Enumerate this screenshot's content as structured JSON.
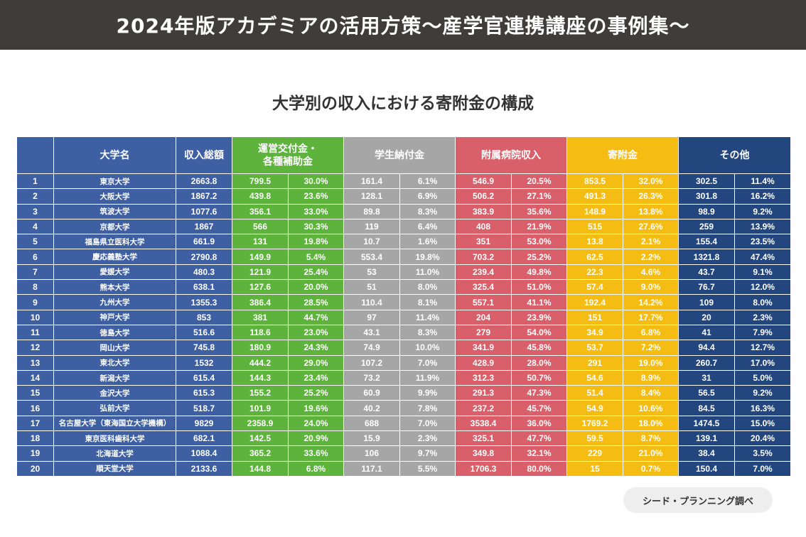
{
  "header": {
    "title": "2024年版アカデミアの活用方策〜産学官連携講座の事例集〜"
  },
  "colors": {
    "banner": "#3f3d3b",
    "rank_name_total": "#3f5fa3",
    "grants": "#5db33b",
    "tuition": "#a6a6a6",
    "hospital": "#d9606a",
    "donations": "#f5bd14",
    "other": "#23467e"
  },
  "chart_data": {
    "type": "table",
    "title": "大学別の収入における寄附金の構成",
    "source": "シード・プランニング調べ",
    "columns": {
      "rank": "",
      "name": "大学名",
      "total": "収入総額",
      "grants": "運営交付金・\n各種補助金",
      "tuition": "学生納付金",
      "hospital": "附属病院収入",
      "donations": "寄附金",
      "other": "その他"
    },
    "rows": [
      [
        "1",
        "東京大学",
        "2663.8",
        "799.5",
        "30.0%",
        "161.4",
        "6.1%",
        "546.9",
        "20.5%",
        "853.5",
        "32.0%",
        "302.5",
        "11.4%"
      ],
      [
        "2",
        "大阪大学",
        "1867.2",
        "439.8",
        "23.6%",
        "128.1",
        "6.9%",
        "506.2",
        "27.1%",
        "491.3",
        "26.3%",
        "301.8",
        "16.2%"
      ],
      [
        "3",
        "筑波大学",
        "1077.6",
        "356.1",
        "33.0%",
        "89.8",
        "8.3%",
        "383.9",
        "35.6%",
        "148.9",
        "13.8%",
        "98.9",
        "9.2%"
      ],
      [
        "4",
        "京都大学",
        "1867",
        "566",
        "30.3%",
        "119",
        "6.4%",
        "408",
        "21.9%",
        "515",
        "27.6%",
        "259",
        "13.9%"
      ],
      [
        "5",
        "福島県立医科大学",
        "661.9",
        "131",
        "19.8%",
        "10.7",
        "1.6%",
        "351",
        "53.0%",
        "13.8",
        "2.1%",
        "155.4",
        "23.5%"
      ],
      [
        "6",
        "慶応義塾大学",
        "2790.8",
        "149.9",
        "5.4%",
        "553.4",
        "19.8%",
        "703.2",
        "25.2%",
        "62.5",
        "2.2%",
        "1321.8",
        "47.4%"
      ],
      [
        "7",
        "愛媛大学",
        "480.3",
        "121.9",
        "25.4%",
        "53",
        "11.0%",
        "239.4",
        "49.8%",
        "22.3",
        "4.6%",
        "43.7",
        "9.1%"
      ],
      [
        "8",
        "熊本大学",
        "638.1",
        "127.6",
        "20.0%",
        "51",
        "8.0%",
        "325.4",
        "51.0%",
        "57.4",
        "9.0%",
        "76.7",
        "12.0%"
      ],
      [
        "9",
        "九州大学",
        "1355.3",
        "386.4",
        "28.5%",
        "110.4",
        "8.1%",
        "557.1",
        "41.1%",
        "192.4",
        "14.2%",
        "109",
        "8.0%"
      ],
      [
        "10",
        "神戸大学",
        "853",
        "381",
        "44.7%",
        "97",
        "11.4%",
        "204",
        "23.9%",
        "151",
        "17.7%",
        "20",
        "2.3%"
      ],
      [
        "11",
        "徳島大学",
        "516.6",
        "118.6",
        "23.0%",
        "43.1",
        "8.3%",
        "279",
        "54.0%",
        "34.9",
        "6.8%",
        "41",
        "7.9%"
      ],
      [
        "12",
        "岡山大学",
        "745.8",
        "180.9",
        "24.3%",
        "74.9",
        "10.0%",
        "341.9",
        "45.8%",
        "53.7",
        "7.2%",
        "94.4",
        "12.7%"
      ],
      [
        "13",
        "東北大学",
        "1532",
        "444.2",
        "29.0%",
        "107.2",
        "7.0%",
        "428.9",
        "28.0%",
        "291",
        "19.0%",
        "260.7",
        "17.0%"
      ],
      [
        "14",
        "新潟大学",
        "615.4",
        "144.3",
        "23.4%",
        "73.2",
        "11.9%",
        "312.3",
        "50.7%",
        "54.6",
        "8.9%",
        "31",
        "5.0%"
      ],
      [
        "15",
        "金沢大学",
        "615.3",
        "155.2",
        "25.2%",
        "60.9",
        "9.9%",
        "291.3",
        "47.3%",
        "51.4",
        "8.4%",
        "56.5",
        "9.2%"
      ],
      [
        "16",
        "弘前大学",
        "518.7",
        "101.9",
        "19.6%",
        "40.2",
        "7.8%",
        "237.2",
        "45.7%",
        "54.9",
        "10.6%",
        "84.5",
        "16.3%"
      ],
      [
        "17",
        "名古屋大学（東海国立大学機構）",
        "9829",
        "2358.9",
        "24.0%",
        "688",
        "7.0%",
        "3538.4",
        "36.0%",
        "1769.2",
        "18.0%",
        "1474.5",
        "15.0%"
      ],
      [
        "18",
        "東京医科歯科大学",
        "682.1",
        "142.5",
        "20.9%",
        "15.9",
        "2.3%",
        "325.1",
        "47.7%",
        "59.5",
        "8.7%",
        "139.1",
        "20.4%"
      ],
      [
        "19",
        "北海道大学",
        "1088.4",
        "365.2",
        "33.6%",
        "106",
        "9.7%",
        "349.8",
        "32.1%",
        "229",
        "21.0%",
        "38.4",
        "3.5%"
      ],
      [
        "20",
        "順天堂大学",
        "2133.6",
        "144.8",
        "6.8%",
        "117.1",
        "5.5%",
        "1706.3",
        "80.0%",
        "15",
        "0.7%",
        "150.4",
        "7.0%"
      ]
    ]
  }
}
